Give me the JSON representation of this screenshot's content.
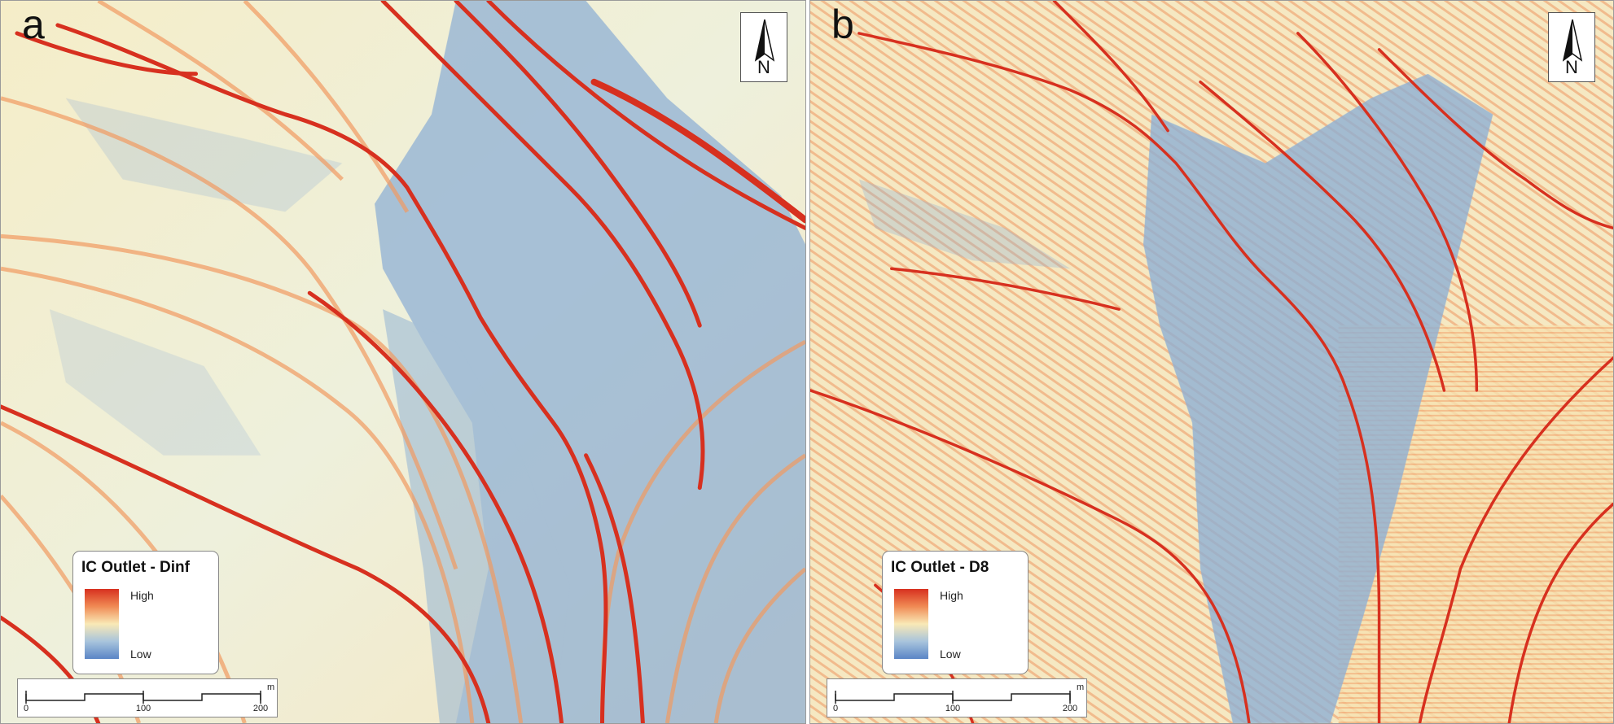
{
  "panels": [
    {
      "letter": "a",
      "north_label": "N",
      "legend": {
        "title": "IC Outlet - Dinf",
        "high": "High",
        "low": "Low"
      },
      "scale": {
        "ticks": [
          "0",
          "100",
          "200"
        ],
        "unit": "m"
      }
    },
    {
      "letter": "b",
      "north_label": "N",
      "legend": {
        "title": "IC Outlet - D8",
        "high": "High",
        "low": "Low"
      },
      "scale": {
        "ticks": [
          "0",
          "100",
          "200"
        ],
        "unit": "m"
      }
    }
  ],
  "colors": {
    "high": "#d7301f",
    "mid": "#f9e9b6",
    "low": "#5a85c6",
    "background": "#f3eecf"
  }
}
